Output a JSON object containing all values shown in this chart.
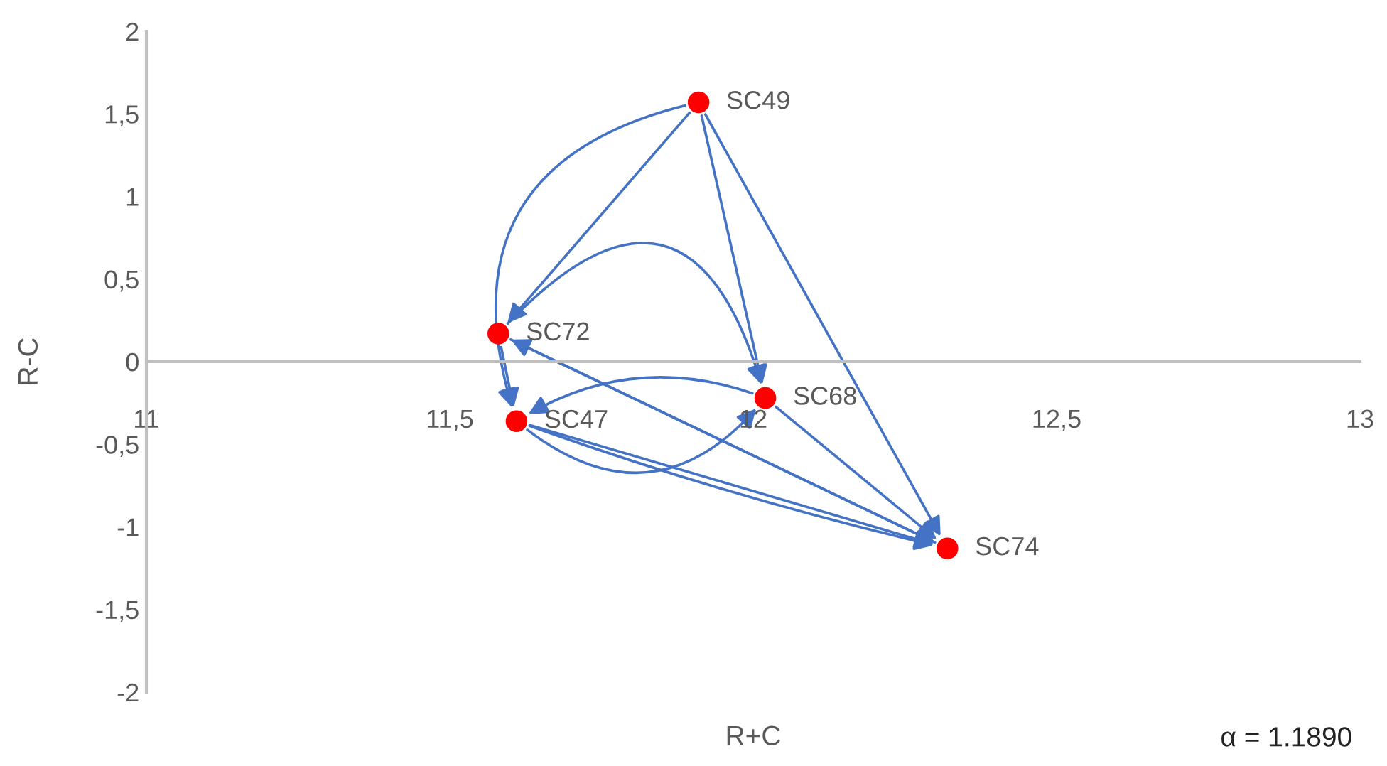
{
  "chart_data": {
    "type": "scatter",
    "xlabel": "R+C",
    "ylabel": "R-C",
    "x": [
      11.91,
      11.58,
      11.61,
      12.02,
      12.32
    ],
    "series": [
      {
        "color": "#ff0000",
        "values": [
          1.57,
          0.17,
          -0.36,
          -0.22,
          -1.13
        ]
      }
    ],
    "marker": "circle",
    "xlim": [
      11,
      13
    ],
    "ylim": [
      -2,
      2
    ],
    "xticks": [
      11,
      {
        "value": 11.5,
        "label": "11,5"
      },
      12,
      {
        "value": 12.5,
        "label": "12,5"
      },
      13
    ],
    "yticks": [
      -2,
      {
        "value": -1.5,
        "label": "-1,5"
      },
      -1,
      {
        "value": -0.5,
        "label": "-0,5"
      },
      0,
      {
        "value": 0.5,
        "label": "0,5"
      },
      1,
      {
        "value": 1.5,
        "label": "1,5"
      },
      2
    ],
    "grid": false,
    "legend": false,
    "annotations": [
      {
        "text": "SC49",
        "x": 11.91,
        "y": 1.57
      },
      {
        "text": "SC72",
        "x": 11.58,
        "y": 0.17
      },
      {
        "text": "SC47",
        "x": 11.61,
        "y": -0.36
      },
      {
        "text": "SC68",
        "x": 12.02,
        "y": -0.22
      },
      {
        "text": "SC74",
        "x": 12.32,
        "y": -1.13
      },
      "α = 1.1890"
    ]
  }
}
